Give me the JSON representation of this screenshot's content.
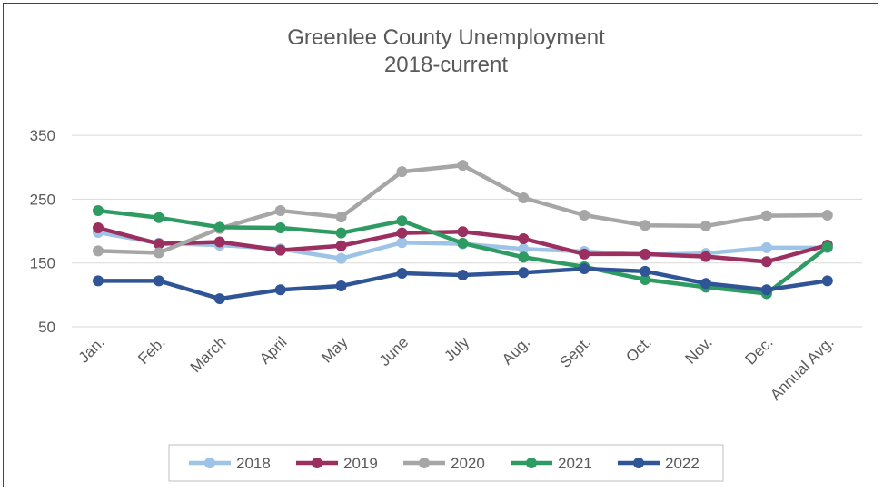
{
  "chart_data": {
    "type": "line",
    "title": "Greenlee County Unemployment",
    "subtitle": "2018-current",
    "xlabel": "",
    "ylabel": "",
    "categories": [
      "Jan.",
      "Feb.",
      "March",
      "April",
      "May",
      "June",
      "July",
      "Aug.",
      "Sept.",
      "Oct.",
      "Nov.",
      "Dec.",
      "Annual Avg."
    ],
    "y_ticks": [
      50,
      150,
      250,
      350
    ],
    "ylim": [
      0,
      350
    ],
    "grid": true,
    "legend_position": "bottom",
    "series": [
      {
        "name": "2018",
        "color": "#9dc3e6",
        "values": [
          198,
          181,
          178,
          172,
          157,
          182,
          180,
          172,
          168,
          163,
          165,
          174,
          174
        ]
      },
      {
        "name": "2019",
        "color": "#9b2f5f",
        "values": [
          205,
          180,
          183,
          170,
          177,
          197,
          199,
          188,
          164,
          164,
          160,
          152,
          178
        ]
      },
      {
        "name": "2020",
        "color": "#a6a6a6",
        "values": [
          169,
          166,
          204,
          232,
          222,
          293,
          303,
          252,
          225,
          209,
          208,
          224,
          225
        ]
      },
      {
        "name": "2021",
        "color": "#2e9b63",
        "values": [
          232,
          221,
          206,
          205,
          197,
          216,
          181,
          159,
          144,
          124,
          112,
          102,
          175
        ]
      },
      {
        "name": "2022",
        "color": "#2f5597",
        "values": [
          122,
          122,
          94,
          108,
          114,
          134,
          131,
          135,
          141,
          137,
          118,
          108,
          122
        ]
      }
    ]
  }
}
